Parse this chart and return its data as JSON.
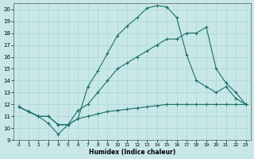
{
  "xlabel": "Humidex (Indice chaleur)",
  "xlim": [
    -0.5,
    23.5
  ],
  "ylim": [
    9,
    20.5
  ],
  "xticks": [
    0,
    1,
    2,
    3,
    4,
    5,
    6,
    7,
    8,
    9,
    10,
    11,
    12,
    13,
    14,
    15,
    16,
    17,
    18,
    19,
    20,
    21,
    22,
    23
  ],
  "yticks": [
    9,
    10,
    11,
    12,
    13,
    14,
    15,
    16,
    17,
    18,
    19,
    20
  ],
  "bg_color": "#c8e8e8",
  "grid_color": "#acd4d4",
  "line_color": "#1a6e6a",
  "line1_y": [
    11.8,
    11.4,
    11.0,
    10.4,
    9.5,
    10.3,
    10.8,
    13.5,
    14.8,
    16.3,
    17.8,
    18.6,
    19.3,
    20.1,
    20.3,
    20.2,
    19.3,
    16.2,
    14.0,
    13.5,
    13.0,
    13.5,
    12.5,
    12.0
  ],
  "line2_y": [
    11.8,
    11.4,
    11.0,
    11.0,
    10.3,
    10.3,
    11.5,
    12.0,
    13.0,
    14.0,
    15.0,
    15.5,
    16.0,
    16.5,
    17.0,
    17.5,
    17.5,
    18.0,
    18.0,
    18.5,
    15.0,
    13.8,
    13.0,
    12.0
  ],
  "line3_y": [
    11.8,
    11.4,
    11.0,
    11.0,
    10.3,
    10.3,
    10.8,
    11.0,
    11.2,
    11.4,
    11.5,
    11.6,
    11.7,
    11.8,
    11.9,
    12.0,
    12.0,
    12.0,
    12.0,
    12.0,
    12.0,
    12.0,
    12.0,
    12.0
  ]
}
